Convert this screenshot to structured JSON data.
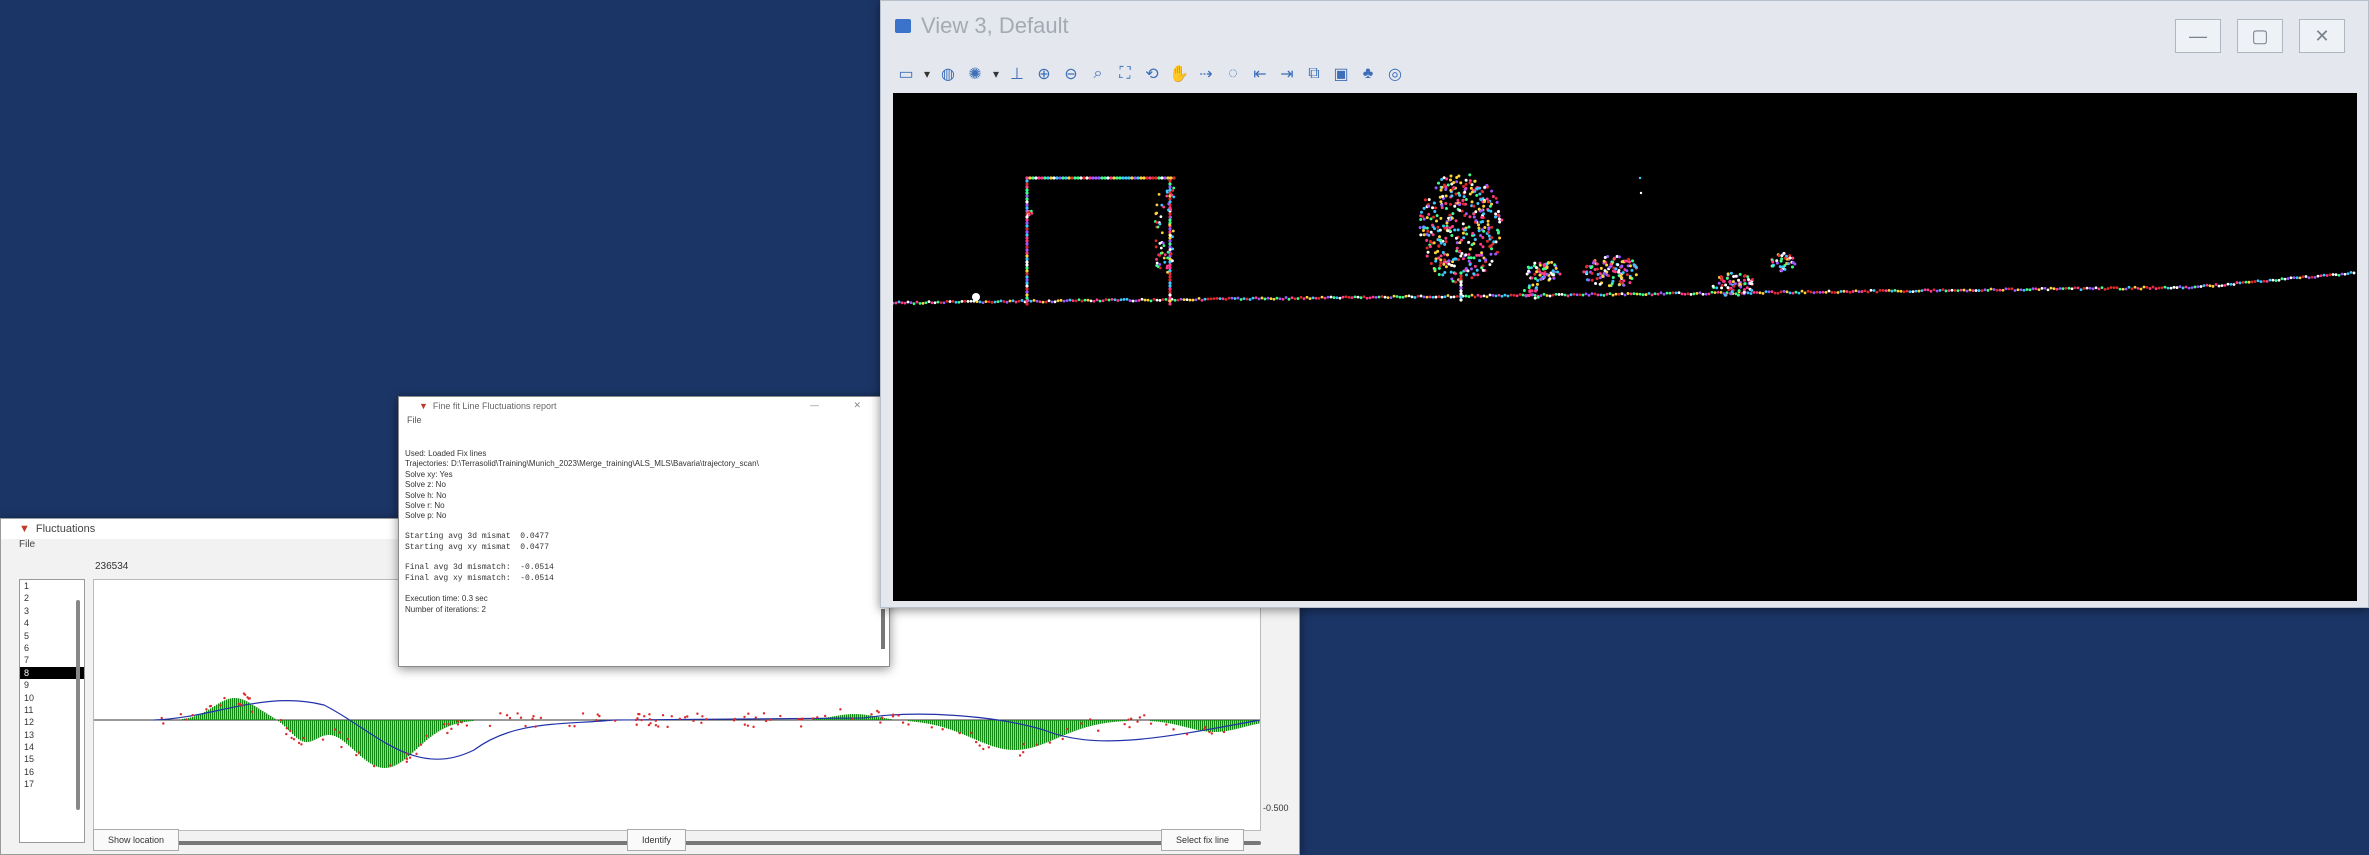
{
  "fluct_window": {
    "title": "Fluctuations",
    "menu": "File",
    "top_value": "236534",
    "list_items": [
      "1",
      "2",
      "3",
      "4",
      "5",
      "6",
      "7",
      "8",
      "9",
      "10",
      "11",
      "12",
      "13",
      "14",
      "15",
      "16",
      "17"
    ],
    "selected_index": 7,
    "scale_label": "-0.500",
    "buttons": {
      "show_location": "Show location",
      "identify": "Identify",
      "select_line": "Select fix line"
    }
  },
  "report_window": {
    "title": "Fine fit Line Fluctuations report",
    "menu": "File",
    "lines": [
      "Used: Loaded Fix lines",
      "Trajectories: D:\\Terrasolid\\Training\\Munich_2023\\Merge_training\\ALS_MLS\\Bavaria\\trajectory_scan\\",
      "Solve xy: Yes",
      "Solve z: No",
      "Solve h: No",
      "Solve r: No",
      "Solve p: No",
      "",
      "Starting avg 3d mismat  0.0477",
      "Starting avg xy mismat  0.0477",
      "",
      "Final avg 3d mismatch:  -0.0514",
      "Final avg xy mismatch:  -0.0514",
      "",
      "Execution time: 0.3 sec",
      "Number of iterations: 2"
    ]
  },
  "view_window": {
    "title": "View 3, Default",
    "icons": [
      "view-attributes-icon",
      "dropdown-icon",
      "display-style-icon",
      "lighting-icon",
      "dropdown-icon",
      "clip-volume-icon",
      "zoom-in-icon",
      "zoom-out-icon",
      "window-area-icon",
      "fit-view-icon",
      "rotate-view-icon",
      "pan-view-icon",
      "walk-icon",
      "hide-icon",
      "view-previous-icon",
      "view-next-icon",
      "copy-view-icon",
      "camera-icon",
      "tree-icon",
      "globe-icon"
    ]
  },
  "colors": {
    "desktop": "#1b3566",
    "view_bg": "#000000",
    "bar_fill": "#118811",
    "point_pink": "#ff3c8c",
    "point_red": "#dd2a2a"
  }
}
